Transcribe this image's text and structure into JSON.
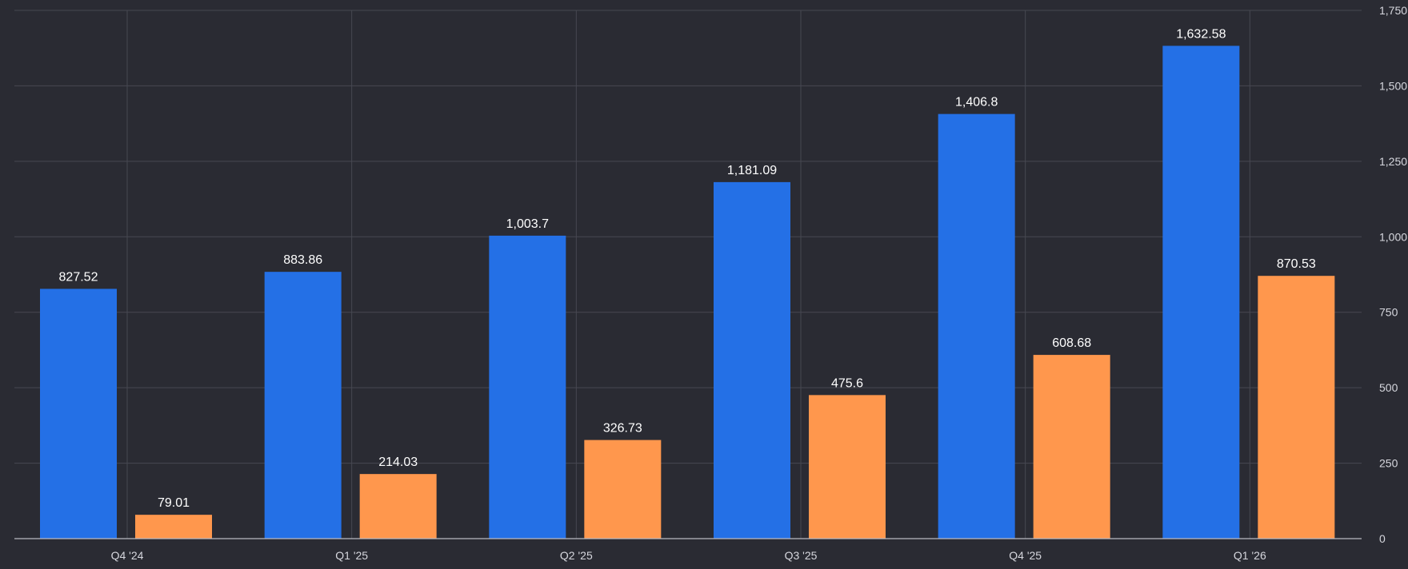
{
  "colors": {
    "background": "#2a2b33",
    "series_1": "#2470e6",
    "series_2": "#ff974d"
  },
  "chart_data": {
    "type": "bar",
    "categories": [
      "Q4 '24",
      "Q1 '25",
      "Q2 '25",
      "Q3 '25",
      "Q4 '25",
      "Q1 '26"
    ],
    "series": [
      {
        "values": [
          827.52,
          883.86,
          1003.7,
          1181.09,
          1406.8,
          1632.58
        ],
        "labels": [
          "827.52",
          "883.86",
          "1,003.7",
          "1,181.09",
          "1,406.8",
          "1,632.58"
        ],
        "color": "#2470e6"
      },
      {
        "values": [
          79.01,
          214.03,
          326.73,
          475.6,
          608.68,
          870.53
        ],
        "labels": [
          "79.01",
          "214.03",
          "326.73",
          "475.6",
          "608.68",
          "870.53"
        ],
        "color": "#ff974d"
      }
    ],
    "ylim": [
      0,
      1750
    ],
    "y_ticks": [
      0,
      250,
      500,
      750,
      1000,
      1250,
      1500,
      1750
    ],
    "y_tick_labels": [
      "0",
      "250",
      "500",
      "750",
      "1,000",
      "1,250",
      "1,500",
      "1,750"
    ],
    "y_axis_side": "right",
    "grid": true,
    "legend": "none",
    "title": "",
    "xlabel": "",
    "ylabel": ""
  }
}
